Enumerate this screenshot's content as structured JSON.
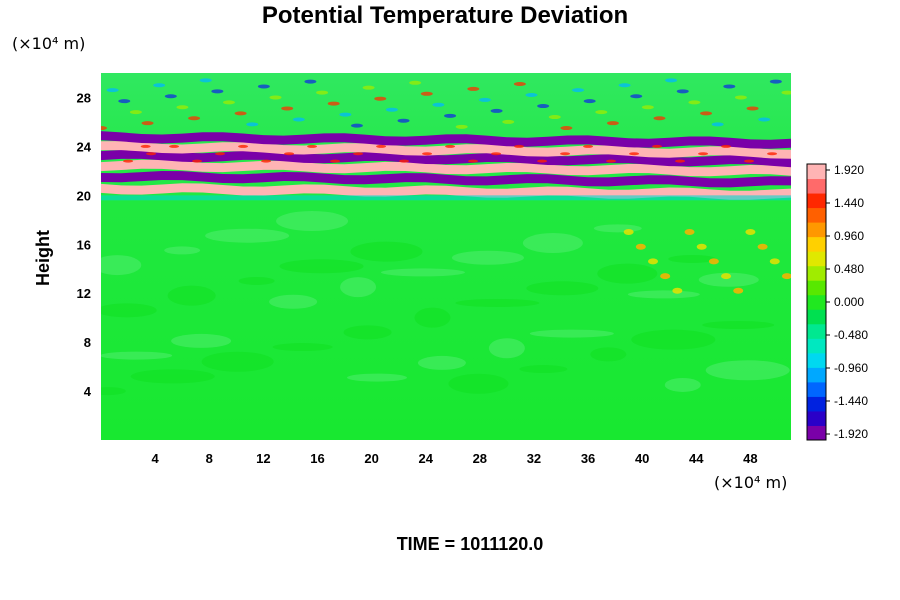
{
  "chart_data": {
    "type": "heatmap",
    "title": "Potential Temperature Deviation",
    "ylabel": "Height",
    "y_unit": "(×10⁴ m)",
    "x_unit": "(×10⁴ m)",
    "footer": "TIME = 1011120.0",
    "x_ticks": [
      4,
      8,
      12,
      16,
      20,
      24,
      28,
      32,
      36,
      40,
      44,
      48
    ],
    "y_ticks": [
      4,
      8,
      12,
      16,
      20,
      24,
      28
    ],
    "xlim": [
      0,
      51
    ],
    "ylim": [
      0,
      30
    ],
    "grid": false,
    "colorbar": {
      "min": -1.92,
      "max": 1.92,
      "tick_labels": [
        "1.920",
        "1.440",
        "0.960",
        "0.480",
        "0.000",
        "-0.480",
        "-0.960",
        "-1.440",
        "-1.920"
      ],
      "colors": [
        "#7a00a8",
        "#2a00c8",
        "#0022e0",
        "#0066ff",
        "#00a8ff",
        "#00d8f0",
        "#00e8c0",
        "#00e890",
        "#00e050",
        "#20e820",
        "#58e800",
        "#a0ec00",
        "#e0e800",
        "#ffd000",
        "#ff9800",
        "#ff6000",
        "#ff2800",
        "#ff6a6a",
        "#ffb4b4"
      ]
    },
    "field_description_bands": [
      {
        "y_center": 20.4,
        "kind": "pink",
        "value": 1.92
      },
      {
        "y_center": 21.4,
        "kind": "purple",
        "value": -1.92
      },
      {
        "y_center": 22.3,
        "kind": "pink",
        "value": 1.92
      },
      {
        "y_center": 23.1,
        "kind": "purple",
        "value": -1.92
      },
      {
        "y_center": 23.8,
        "kind": "pink",
        "value": 1.92
      },
      {
        "y_center": 24.6,
        "kind": "purple",
        "value": -1.92
      }
    ]
  }
}
